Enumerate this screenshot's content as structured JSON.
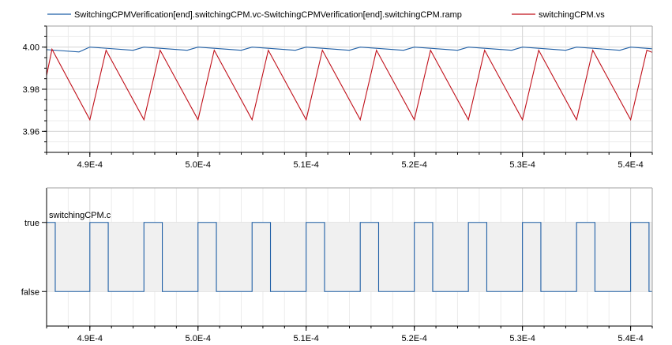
{
  "chart_data": [
    {
      "type": "line",
      "title": "",
      "xlabel": "",
      "ylabel": "",
      "xlim": [
        0.000486,
        0.000542
      ],
      "ylim": [
        3.95,
        4.01
      ],
      "x_ticks": [
        0.00049,
        0.0005,
        0.00051,
        0.00052,
        0.00053,
        0.00054
      ],
      "x_tick_labels": [
        "4.9E-4",
        "5.0E-4",
        "5.1E-4",
        "5.2E-4",
        "5.3E-4",
        "5.4E-4"
      ],
      "y_ticks": [
        3.96,
        3.98,
        4.0
      ],
      "y_tick_labels": [
        "3.96",
        "3.98",
        "4.00"
      ],
      "grid": true,
      "legend_position": "top",
      "series": [
        {
          "name": "SwitchingCPMVerification[end].switchingCPM.vc-SwitchingCPMVerification[end].switchingCPM.ramp",
          "color": "#1f5fa6",
          "x": [
            0.000486,
            0.000489,
            0.00049,
            0.000494,
            0.000495,
            0.000499,
            0.0005,
            0.000504,
            0.000505,
            0.000509,
            0.00051,
            0.000514,
            0.000515,
            0.000519,
            0.00052,
            0.000524,
            0.000525,
            0.000529,
            0.00053,
            0.000534,
            0.000535,
            0.000539,
            0.00054,
            0.000542
          ],
          "y": [
            3.9988,
            3.9977,
            4.0,
            3.9985,
            4.0,
            3.9985,
            4.0,
            3.9985,
            4.0,
            3.9985,
            4.0,
            3.9985,
            4.0,
            3.9985,
            4.0,
            3.9985,
            4.0,
            3.9985,
            4.0,
            3.9985,
            4.0,
            3.9985,
            4.0,
            3.9992
          ]
        },
        {
          "name": "switchingCPM.vs",
          "color": "#c0101a",
          "x": [
            0.000486,
            0.0004865,
            0.00049,
            0.0004915,
            0.000495,
            0.0004965,
            0.0005,
            0.0005015,
            0.000505,
            0.0005065,
            0.00051,
            0.0005115,
            0.000515,
            0.0005165,
            0.00052,
            0.0005215,
            0.000525,
            0.0005265,
            0.00053,
            0.0005315,
            0.000535,
            0.0005365,
            0.00054,
            0.0005415,
            0.000542
          ],
          "y": [
            3.9865,
            3.999,
            3.9655,
            3.9985,
            3.9655,
            3.9985,
            3.9655,
            3.9985,
            3.9655,
            3.9985,
            3.9655,
            3.9985,
            3.9655,
            3.9985,
            3.9655,
            3.9985,
            3.9655,
            3.9985,
            3.9655,
            3.9985,
            3.9655,
            3.9985,
            3.9655,
            3.9985,
            3.9975
          ]
        }
      ]
    },
    {
      "type": "line",
      "title": "",
      "xlabel": "",
      "ylabel": "",
      "xlim": [
        0.000486,
        0.000542
      ],
      "ylim": [
        -0.5,
        1.5
      ],
      "x_ticks": [
        0.00049,
        0.0005,
        0.00051,
        0.00052,
        0.00053,
        0.00054
      ],
      "x_tick_labels": [
        "4.9E-4",
        "5.0E-4",
        "5.1E-4",
        "5.2E-4",
        "5.3E-4",
        "5.4E-4"
      ],
      "y_ticks": [
        0,
        1
      ],
      "y_tick_labels": [
        "false",
        "true"
      ],
      "grid": true,
      "series": [
        {
          "name": "switchingCPM.c",
          "color": "#1f5fa6",
          "fill": "#f0f0f0",
          "step": true,
          "x": [
            0.000486,
            0.0004868,
            0.0004868,
            0.00049,
            0.00049,
            0.0004917,
            0.0004917,
            0.000495,
            0.000495,
            0.0004967,
            0.0004967,
            0.0005,
            0.0005,
            0.0005017,
            0.0005017,
            0.000505,
            0.000505,
            0.0005067,
            0.0005067,
            0.00051,
            0.00051,
            0.0005117,
            0.0005117,
            0.000515,
            0.000515,
            0.0005167,
            0.0005167,
            0.00052,
            0.00052,
            0.0005217,
            0.0005217,
            0.000525,
            0.000525,
            0.0005267,
            0.0005267,
            0.00053,
            0.00053,
            0.0005317,
            0.0005317,
            0.000535,
            0.000535,
            0.0005367,
            0.0005367,
            0.00054,
            0.00054,
            0.0005417,
            0.0005417,
            0.000542
          ],
          "y": [
            1,
            1,
            0,
            0,
            1,
            1,
            0,
            0,
            1,
            1,
            0,
            0,
            1,
            1,
            0,
            0,
            1,
            1,
            0,
            0,
            1,
            1,
            0,
            0,
            1,
            1,
            0,
            0,
            1,
            1,
            0,
            0,
            1,
            1,
            0,
            0,
            1,
            1,
            0,
            0,
            1,
            1,
            0,
            0,
            1,
            1,
            0,
            0
          ]
        }
      ]
    }
  ]
}
